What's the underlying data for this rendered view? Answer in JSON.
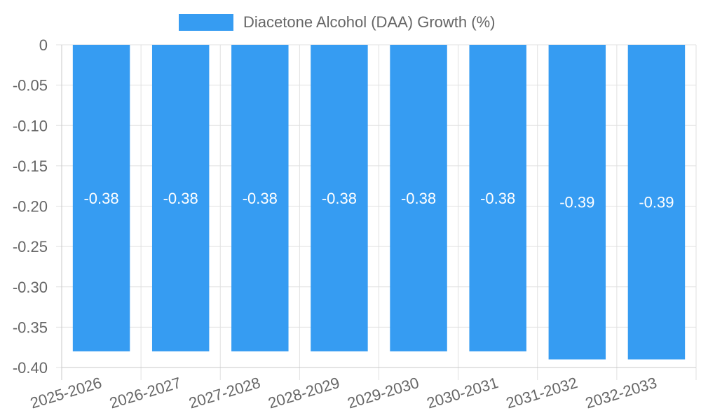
{
  "chart_data": {
    "type": "bar",
    "categories": [
      "2025-2026",
      "2026-2027",
      "2027-2028",
      "2028-2029",
      "2029-2030",
      "2030-2031",
      "2031-2032",
      "2032-2033"
    ],
    "series": [
      {
        "name": "Diacetone Alcohol (DAA) Growth (%)",
        "values": [
          -0.38,
          -0.38,
          -0.38,
          -0.38,
          -0.38,
          -0.38,
          -0.39,
          -0.39
        ],
        "labels": [
          "-0.38",
          "-0.38",
          "-0.38",
          "-0.38",
          "-0.38",
          "-0.38",
          "-0.39",
          "-0.39"
        ]
      }
    ],
    "y_ticks": [
      "0",
      "-0.05",
      "-0.10",
      "-0.15",
      "-0.20",
      "-0.25",
      "-0.30",
      "-0.35",
      "-0.40"
    ],
    "ylim": [
      -0.4,
      0
    ],
    "grid": true,
    "legend_position": "top-center",
    "xlabel": "",
    "ylabel": ""
  },
  "colors": {
    "bar": "#369cf2",
    "grid": "#e0e0e0",
    "axis": "#c8c8c8",
    "text": "#666666"
  }
}
